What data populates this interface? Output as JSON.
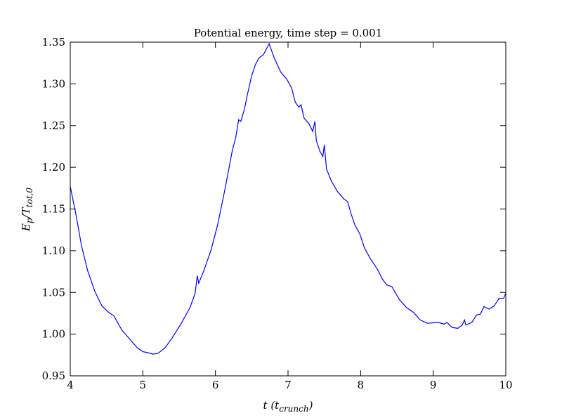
{
  "chart_data": {
    "type": "line",
    "title": "Potential energy, time step = 0.001",
    "xlabel": [
      "t",
      " (t",
      "crunch",
      ")"
    ],
    "ylabel": [
      "E",
      "p",
      "/T",
      "tot,0"
    ],
    "color": "#0000ff",
    "x": [
      4.0,
      4.077,
      4.155,
      4.24,
      4.34,
      4.435,
      4.53,
      4.6,
      4.71,
      4.82,
      4.92,
      5.0,
      5.06,
      5.14,
      5.21,
      5.31,
      5.4,
      5.53,
      5.65,
      5.72,
      5.75,
      5.77,
      5.84,
      5.94,
      6.03,
      6.13,
      6.23,
      6.28,
      6.32,
      6.35,
      6.4,
      6.44,
      6.5,
      6.55,
      6.6,
      6.66,
      6.74,
      6.81,
      6.9,
      6.98,
      7.05,
      7.1,
      7.15,
      7.18,
      7.22,
      7.29,
      7.34,
      7.37,
      7.39,
      7.44,
      7.48,
      7.5,
      7.53,
      7.6,
      7.68,
      7.77,
      7.82,
      7.87,
      7.92,
      7.99,
      8.05,
      8.13,
      8.23,
      8.3,
      8.36,
      8.43,
      8.53,
      8.63,
      8.73,
      8.82,
      8.92,
      9.07,
      9.15,
      9.19,
      9.26,
      9.34,
      9.4,
      9.43,
      9.45,
      9.53,
      9.6,
      9.65,
      9.7,
      9.77,
      9.84,
      9.91,
      9.97,
      10.0
    ],
    "values": [
      1.177,
      1.144,
      1.106,
      1.076,
      1.051,
      1.034,
      1.026,
      1.022,
      1.005,
      0.994,
      0.984,
      0.979,
      0.978,
      0.976,
      0.977,
      0.984,
      0.995,
      1.013,
      1.032,
      1.049,
      1.07,
      1.061,
      1.076,
      1.101,
      1.131,
      1.173,
      1.219,
      1.236,
      1.257,
      1.255,
      1.27,
      1.287,
      1.31,
      1.323,
      1.331,
      1.335,
      1.348,
      1.331,
      1.314,
      1.306,
      1.295,
      1.278,
      1.272,
      1.275,
      1.259,
      1.252,
      1.243,
      1.255,
      1.232,
      1.219,
      1.213,
      1.227,
      1.198,
      1.183,
      1.171,
      1.162,
      1.159,
      1.144,
      1.131,
      1.12,
      1.104,
      1.091,
      1.078,
      1.066,
      1.059,
      1.057,
      1.042,
      1.032,
      1.026,
      1.017,
      1.013,
      1.014,
      1.012,
      1.014,
      1.008,
      1.007,
      1.011,
      1.017,
      1.011,
      1.014,
      1.023,
      1.024,
      1.033,
      1.03,
      1.034,
      1.043,
      1.043,
      1.049
    ],
    "xlim": [
      4,
      10
    ],
    "xticks": [
      4,
      5,
      6,
      7,
      8,
      9,
      10
    ],
    "ylim": [
      0.95,
      1.35
    ],
    "yticks": [
      0.95,
      {
        "value": 1.0,
        "label": "1.00"
      },
      1.05,
      {
        "value": 1.1,
        "label": "1.10"
      },
      1.15,
      {
        "value": 1.2,
        "label": "1.20"
      },
      1.25,
      {
        "value": 1.3,
        "label": "1.30"
      },
      1.35
    ]
  }
}
